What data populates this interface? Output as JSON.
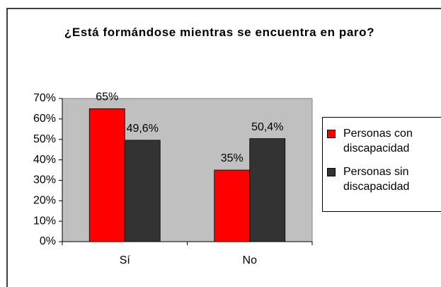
{
  "chart_data": {
    "type": "bar",
    "title": "¿Está formándose mientras se encuentra en paro?",
    "categories": [
      "Sí",
      "No"
    ],
    "series": [
      {
        "name": "Personas con discapacidad",
        "color": "#ff0000",
        "values": [
          65,
          35
        ],
        "value_labels": [
          "65%",
          "35%"
        ]
      },
      {
        "name": "Personas sin discapacidad",
        "color": "#333333",
        "values": [
          49.6,
          50.4
        ],
        "value_labels": [
          "49,6%",
          "50,4%"
        ]
      }
    ],
    "ylim": [
      0,
      70
    ],
    "yticks": [
      {
        "value": 0,
        "label": "0%"
      },
      {
        "value": 10,
        "label": "10%"
      },
      {
        "value": 20,
        "label": "20%"
      },
      {
        "value": 30,
        "label": "30%"
      },
      {
        "value": 40,
        "label": "40%"
      },
      {
        "value": 50,
        "label": "50%"
      },
      {
        "value": 60,
        "label": "60%"
      },
      {
        "value": 70,
        "label": "70%"
      }
    ],
    "legend": "right",
    "plot_background": "#c0c0c0"
  }
}
